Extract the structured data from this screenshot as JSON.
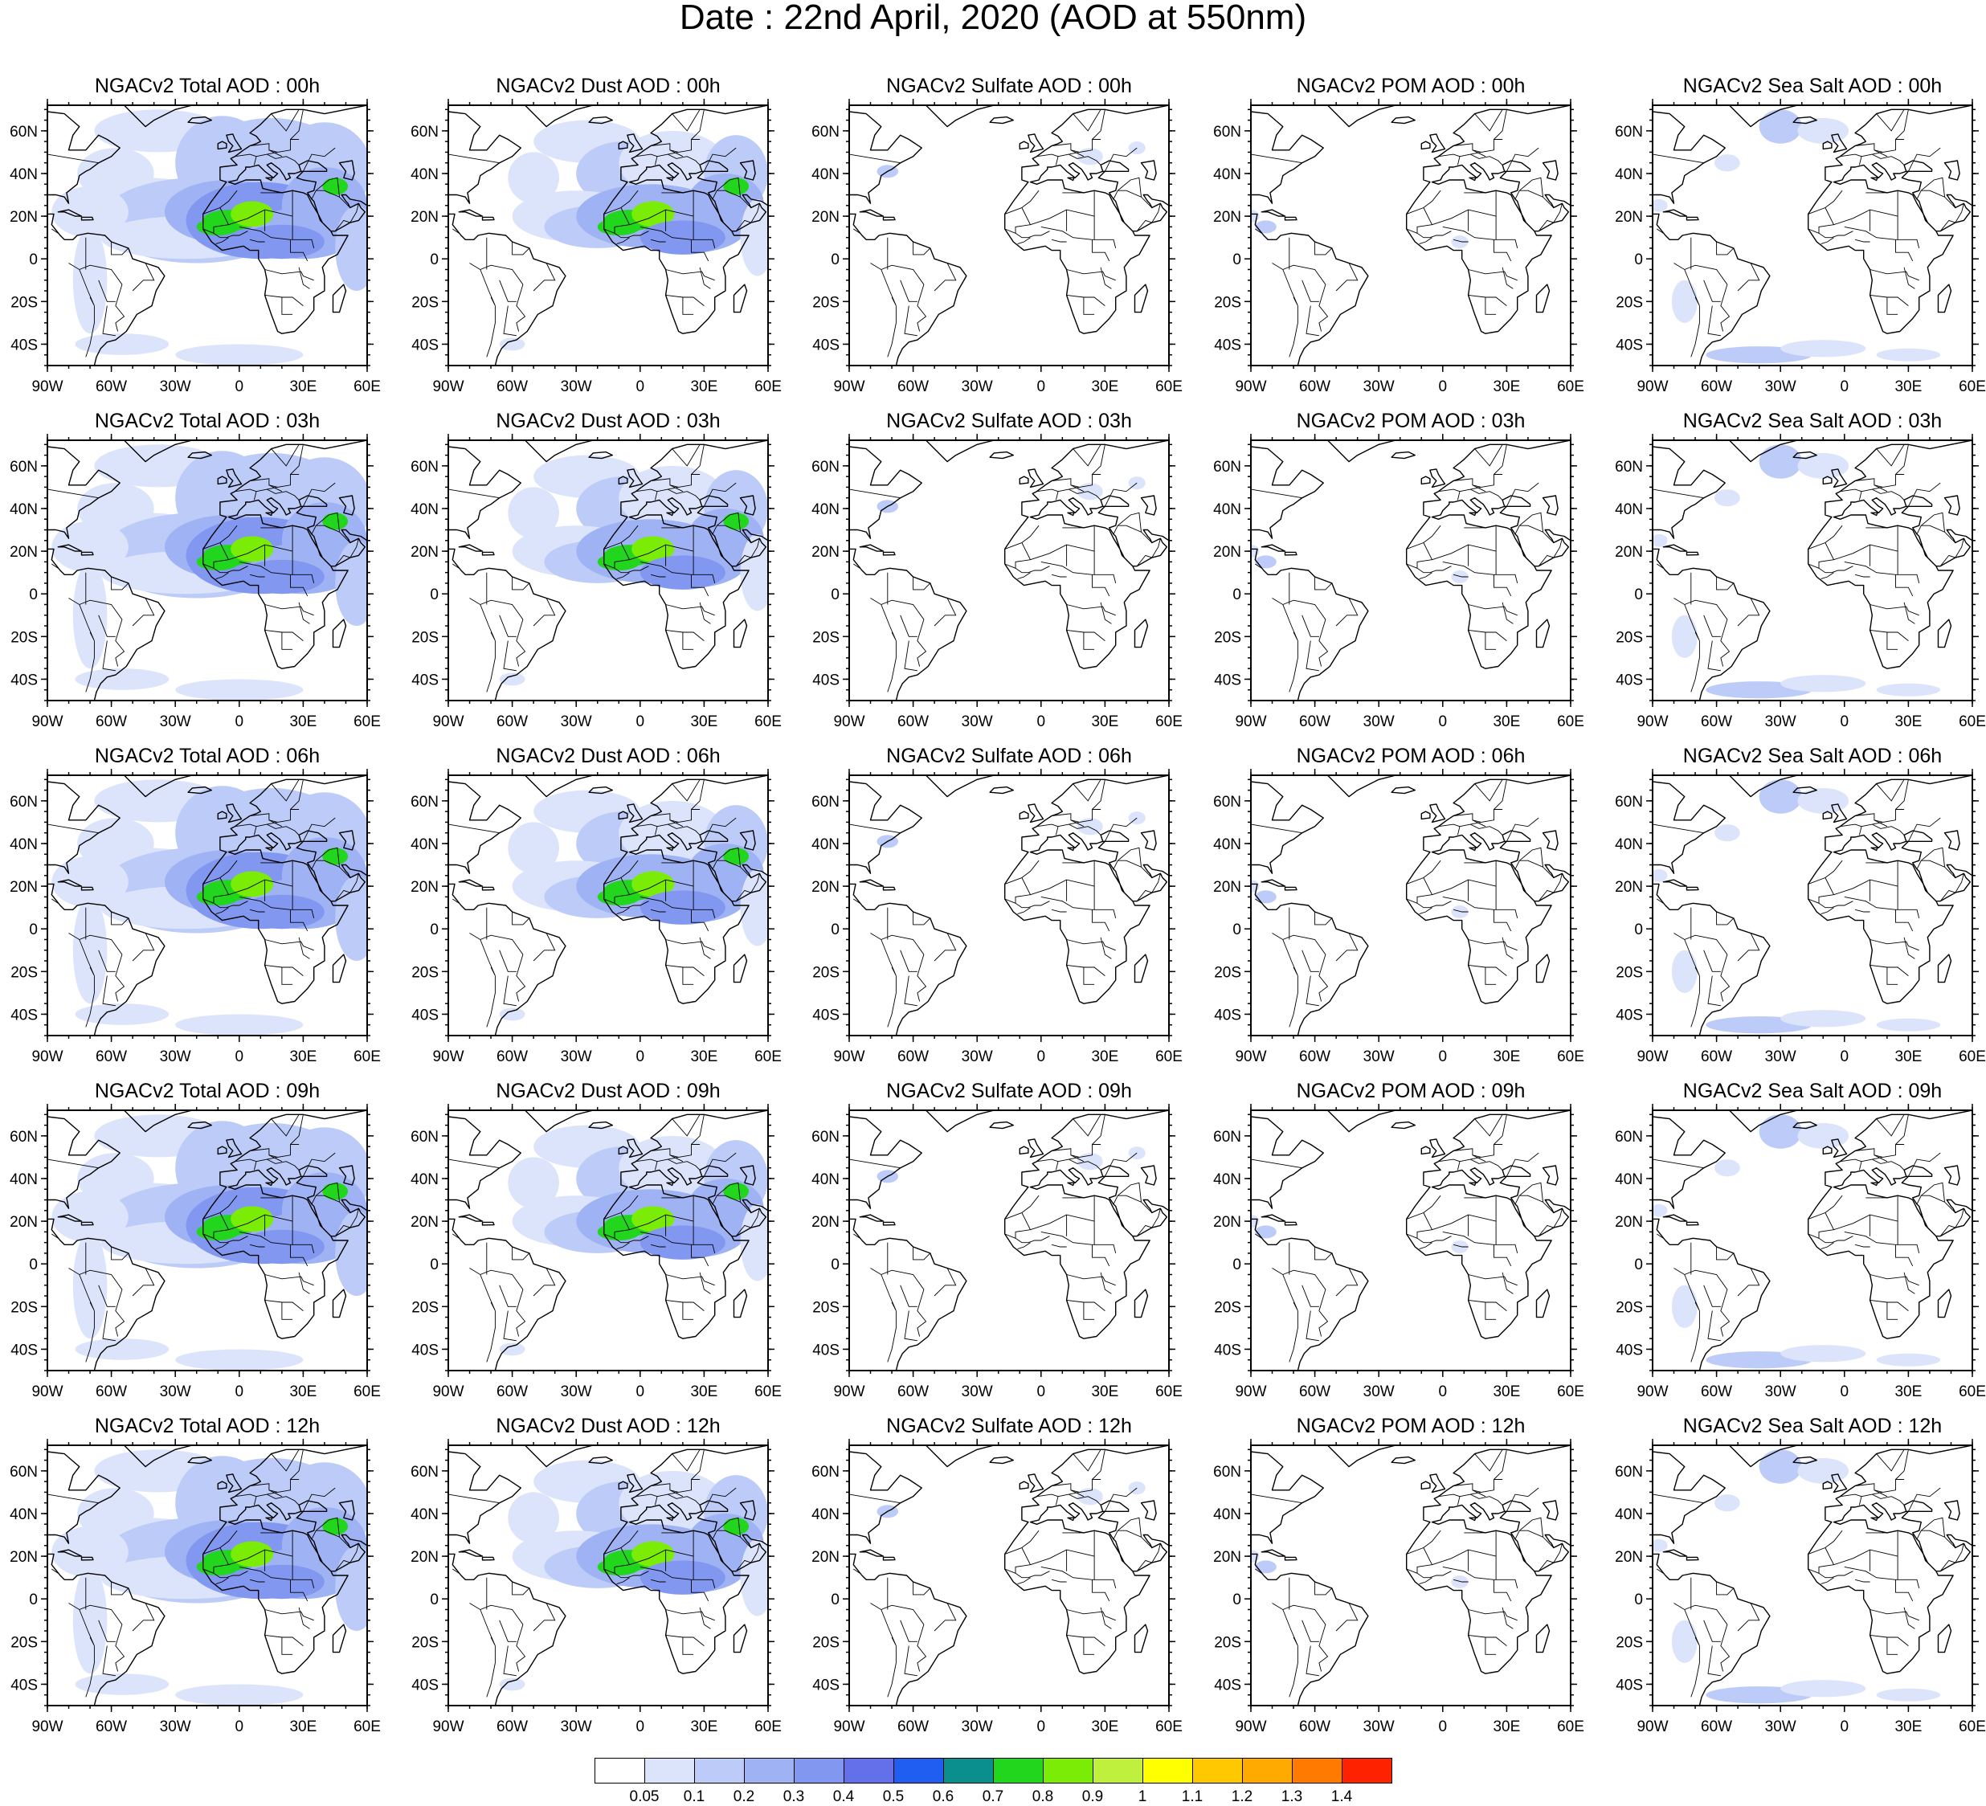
{
  "title": "Date : 22nd April, 2020 (AOD at 550nm)",
  "lat_labels": [
    "60N",
    "40N",
    "20N",
    "0",
    "20S",
    "40S"
  ],
  "lon_labels": [
    "90W",
    "60W",
    "30W",
    "0",
    "30E",
    "60E"
  ],
  "panels": [
    {
      "row": 0,
      "col": 0,
      "title": "NGACv2 Total AOD : 00h",
      "field": "total"
    },
    {
      "row": 0,
      "col": 1,
      "title": "NGACv2 Dust AOD : 00h",
      "field": "dust"
    },
    {
      "row": 0,
      "col": 2,
      "title": "NGACv2 Sulfate AOD : 00h",
      "field": "sulfate"
    },
    {
      "row": 0,
      "col": 3,
      "title": "NGACv2 POM AOD : 00h",
      "field": "pom"
    },
    {
      "row": 0,
      "col": 4,
      "title": "NGACv2 Sea Salt AOD : 00h",
      "field": "seasalt"
    },
    {
      "row": 1,
      "col": 0,
      "title": "NGACv2 Total AOD : 03h",
      "field": "total"
    },
    {
      "row": 1,
      "col": 1,
      "title": "NGACv2 Dust AOD : 03h",
      "field": "dust"
    },
    {
      "row": 1,
      "col": 2,
      "title": "NGACv2 Sulfate AOD : 03h",
      "field": "sulfate"
    },
    {
      "row": 1,
      "col": 3,
      "title": "NGACv2 POM AOD : 03h",
      "field": "pom"
    },
    {
      "row": 1,
      "col": 4,
      "title": "NGACv2 Sea Salt AOD : 03h",
      "field": "seasalt"
    },
    {
      "row": 2,
      "col": 0,
      "title": "NGACv2 Total AOD : 06h",
      "field": "total"
    },
    {
      "row": 2,
      "col": 1,
      "title": "NGACv2 Dust AOD : 06h",
      "field": "dust"
    },
    {
      "row": 2,
      "col": 2,
      "title": "NGACv2 Sulfate AOD : 06h",
      "field": "sulfate"
    },
    {
      "row": 2,
      "col": 3,
      "title": "NGACv2 POM AOD : 06h",
      "field": "pom"
    },
    {
      "row": 2,
      "col": 4,
      "title": "NGACv2 Sea Salt AOD : 06h",
      "field": "seasalt"
    },
    {
      "row": 3,
      "col": 0,
      "title": "NGACv2 Total AOD : 09h",
      "field": "total"
    },
    {
      "row": 3,
      "col": 1,
      "title": "NGACv2 Dust AOD : 09h",
      "field": "dust"
    },
    {
      "row": 3,
      "col": 2,
      "title": "NGACv2 Sulfate AOD : 09h",
      "field": "sulfate"
    },
    {
      "row": 3,
      "col": 3,
      "title": "NGACv2 POM AOD : 09h",
      "field": "pom"
    },
    {
      "row": 3,
      "col": 4,
      "title": "NGACv2 Sea Salt  AOD : 09h",
      "field": "seasalt"
    },
    {
      "row": 4,
      "col": 0,
      "title": "NGACv2 Total AOD  : 12h",
      "field": "total"
    },
    {
      "row": 4,
      "col": 1,
      "title": "NGACv2 Dust AOD : 12h",
      "field": "dust"
    },
    {
      "row": 4,
      "col": 2,
      "title": "NGACv2 Sulfate AOD : 12h",
      "field": "sulfate"
    },
    {
      "row": 4,
      "col": 3,
      "title": "NGACv2 POM  AOD : 12h",
      "field": "pom"
    },
    {
      "row": 4,
      "col": 4,
      "title": "NGACv2 Sea Salt  AOD : 12h",
      "field": "seasalt"
    }
  ],
  "colorbar": {
    "labels": [
      "0.05",
      "0.1",
      "0.2",
      "0.3",
      "0.4",
      "0.5",
      "0.6",
      "0.7",
      "0.8",
      "0.9",
      "1",
      "1.1",
      "1.2",
      "1.3",
      "1.4"
    ],
    "colors": [
      "#ffffff",
      "#dce4fb",
      "#bccbf7",
      "#9fb3f4",
      "#8298f0",
      "#6370ea",
      "#1f5ef0",
      "#0a8f8e",
      "#22d61e",
      "#7bec06",
      "#bff03e",
      "#ffff00",
      "#ffc800",
      "#ffaa00",
      "#ff7a00",
      "#ff2200"
    ]
  }
}
